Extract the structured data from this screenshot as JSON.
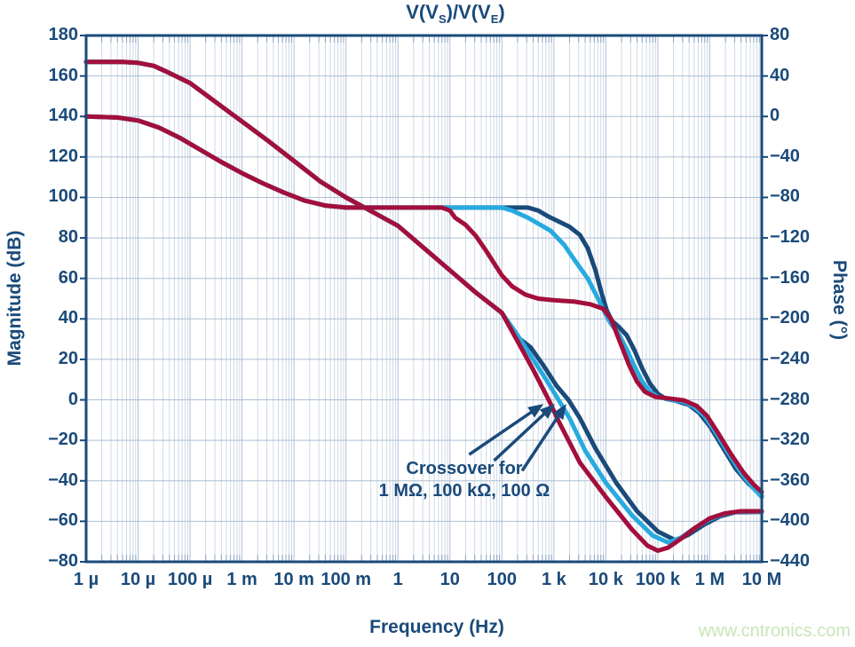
{
  "title": {
    "parts": [
      "V(V",
      "S",
      ")/V(V",
      "E",
      ")"
    ]
  },
  "axes": {
    "magnitude_label": "Magnitude (dB)",
    "phase_label": "Phase (°)",
    "frequency_label": "Frequency (Hz)",
    "x_tick_labels": [
      "1 µ",
      "10 µ",
      "100 µ",
      "1 m",
      "10 m",
      "100 m",
      "1",
      "10",
      "100",
      "1 k",
      "10 k",
      "100 k",
      "1 M",
      "10 M"
    ],
    "left_tick_labels": [
      "180",
      "160",
      "140",
      "120",
      "100",
      "80",
      "60",
      "40",
      "20",
      "0",
      "−20",
      "−40",
      "−60",
      "−80"
    ],
    "right_tick_labels": [
      "80",
      "40",
      "0",
      "−40",
      "−80",
      "−120",
      "−160",
      "−200",
      "−240",
      "−280",
      "−320",
      "−360",
      "−400",
      "−440"
    ]
  },
  "annotation": {
    "line1": "Crossover for",
    "line2": "1 MΩ, 100 kΩ, 100 Ω"
  },
  "watermark": {
    "text": "www.cntronics.com"
  },
  "colors": {
    "navy": "#1a4a7a",
    "cyan": "#27aadf",
    "crimson": "#a30f3c",
    "grid_minor": "#cfd9e6",
    "grid_major": "#aebfd4",
    "inner_tick": "#8aa5c3",
    "border": "#1a4a7a",
    "background": "#ffffff",
    "watermark_green": "#c9e5b9"
  },
  "chart_data": {
    "type": "line",
    "title": "V(VS)/V(VE)",
    "xlabel": "Frequency (Hz)",
    "x_scale": "log",
    "x_range_hz": [
      1e-06,
      10000000.0
    ],
    "y_left": {
      "label": "Magnitude (dB)",
      "range": [
        -80,
        180
      ],
      "tick_step": 20
    },
    "y_right": {
      "label": "Phase (°)",
      "range": [
        -440,
        80
      ],
      "tick_step": 40
    },
    "grid": true,
    "legend": false,
    "series": [
      {
        "id": "magnitude-100ohm",
        "name": "Magnitude 100 Ω",
        "axis": "left",
        "color": "#1a4a7a",
        "points": [
          [
            -6,
            167
          ],
          [
            -5.3,
            167
          ],
          [
            -5,
            166.5
          ],
          [
            -4.7,
            165
          ],
          [
            -4.4,
            161.5
          ],
          [
            -4,
            156.5
          ],
          [
            -3.5,
            147
          ],
          [
            -3,
            137.5
          ],
          [
            -2.5,
            128
          ],
          [
            -2,
            118
          ],
          [
            -1.5,
            108
          ],
          [
            -1,
            100
          ],
          [
            -0.5,
            93
          ],
          [
            0,
            86
          ],
          [
            0.5,
            75
          ],
          [
            1,
            64
          ],
          [
            1.5,
            53
          ],
          [
            2,
            43
          ],
          [
            2.3,
            31
          ],
          [
            2.55,
            26
          ],
          [
            2.8,
            17
          ],
          [
            3.05,
            7
          ],
          [
            3.28,
            0
          ],
          [
            3.5,
            -9
          ],
          [
            3.8,
            -24
          ],
          [
            4.2,
            -41
          ],
          [
            4.6,
            -55
          ],
          [
            5,
            -65
          ],
          [
            5.35,
            -69.5
          ],
          [
            5.6,
            -66.5
          ],
          [
            5.9,
            -61.5
          ],
          [
            6.2,
            -57.5
          ],
          [
            6.5,
            -55.5
          ],
          [
            7,
            -55.3
          ]
        ]
      },
      {
        "id": "magnitude-100k",
        "name": "Magnitude 100 kΩ",
        "axis": "left",
        "color": "#27aadf",
        "points": [
          [
            -6,
            167
          ],
          [
            -5.3,
            167
          ],
          [
            -5,
            166.5
          ],
          [
            -4.7,
            165
          ],
          [
            -4.4,
            161.5
          ],
          [
            -4,
            156.5
          ],
          [
            -3.5,
            147
          ],
          [
            -3,
            137.5
          ],
          [
            -2.5,
            128
          ],
          [
            -2,
            118
          ],
          [
            -1.5,
            108
          ],
          [
            -1,
            100
          ],
          [
            -0.5,
            93
          ],
          [
            0,
            86
          ],
          [
            0.5,
            75
          ],
          [
            1,
            64
          ],
          [
            1.5,
            53
          ],
          [
            2,
            43
          ],
          [
            2.3,
            32
          ],
          [
            2.6,
            20
          ],
          [
            2.85,
            10
          ],
          [
            3.09,
            0
          ],
          [
            3.3,
            -9
          ],
          [
            3.6,
            -25
          ],
          [
            4,
            -41
          ],
          [
            4.5,
            -57
          ],
          [
            4.9,
            -67
          ],
          [
            5.2,
            -70.5
          ],
          [
            5.45,
            -68
          ],
          [
            5.7,
            -63.5
          ],
          [
            6,
            -59
          ],
          [
            6.3,
            -56.2
          ],
          [
            6.6,
            -55.2
          ],
          [
            7,
            -55.2
          ]
        ]
      },
      {
        "id": "magnitude-1M",
        "name": "Magnitude 1 MΩ",
        "axis": "left",
        "color": "#a30f3c",
        "points": [
          [
            -6,
            167
          ],
          [
            -5.3,
            167
          ],
          [
            -5,
            166.5
          ],
          [
            -4.7,
            165
          ],
          [
            -4.4,
            161.5
          ],
          [
            -4,
            156.5
          ],
          [
            -3.5,
            147
          ],
          [
            -3,
            137.5
          ],
          [
            -2.5,
            128
          ],
          [
            -2,
            118
          ],
          [
            -1.5,
            108
          ],
          [
            -1,
            100
          ],
          [
            -0.5,
            93
          ],
          [
            0,
            86
          ],
          [
            0.5,
            75
          ],
          [
            1,
            64
          ],
          [
            1.5,
            53
          ],
          [
            2,
            43
          ],
          [
            2.3,
            29
          ],
          [
            2.6,
            15
          ],
          [
            2.9,
            0
          ],
          [
            3.1,
            -11
          ],
          [
            3.5,
            -31
          ],
          [
            4,
            -48
          ],
          [
            4.5,
            -64
          ],
          [
            4.8,
            -72
          ],
          [
            5,
            -74.5
          ],
          [
            5.2,
            -73
          ],
          [
            5.45,
            -68.5
          ],
          [
            5.7,
            -63.5
          ],
          [
            6,
            -58.5
          ],
          [
            6.3,
            -56
          ],
          [
            6.6,
            -55
          ],
          [
            7,
            -55
          ]
        ]
      },
      {
        "id": "phase-100ohm",
        "name": "Phase 100 Ω",
        "axis": "right",
        "color": "#1a4a7a",
        "points": [
          [
            -6,
            0
          ],
          [
            -5.4,
            -1
          ],
          [
            -5,
            -4
          ],
          [
            -4.6,
            -11
          ],
          [
            -4.2,
            -21
          ],
          [
            -3.8,
            -33
          ],
          [
            -3.4,
            -45
          ],
          [
            -3,
            -56
          ],
          [
            -2.6,
            -66
          ],
          [
            -2.2,
            -75
          ],
          [
            -1.8,
            -83
          ],
          [
            -1.4,
            -88
          ],
          [
            -1,
            -90
          ],
          [
            0,
            -90
          ],
          [
            1,
            -90
          ],
          [
            2,
            -90
          ],
          [
            2.5,
            -90
          ],
          [
            2.7,
            -93
          ],
          [
            2.9,
            -99
          ],
          [
            3.1,
            -104
          ],
          [
            3.3,
            -109
          ],
          [
            3.5,
            -117
          ],
          [
            3.65,
            -130
          ],
          [
            3.8,
            -152
          ],
          [
            3.92,
            -175
          ],
          [
            4.02,
            -192
          ],
          [
            4.12,
            -202
          ],
          [
            4.25,
            -208
          ],
          [
            4.4,
            -216
          ],
          [
            4.55,
            -231
          ],
          [
            4.7,
            -249
          ],
          [
            4.85,
            -264
          ],
          [
            5,
            -274
          ],
          [
            5.15,
            -279
          ],
          [
            5.35,
            -281
          ],
          [
            5.6,
            -285
          ],
          [
            5.8,
            -293
          ],
          [
            6,
            -306
          ],
          [
            6.25,
            -327
          ],
          [
            6.5,
            -348
          ],
          [
            6.75,
            -363
          ],
          [
            6.9,
            -370
          ],
          [
            7,
            -375
          ]
        ]
      },
      {
        "id": "phase-100k",
        "name": "Phase 100 kΩ",
        "axis": "right",
        "color": "#27aadf",
        "points": [
          [
            -6,
            0
          ],
          [
            -5.4,
            -1
          ],
          [
            -5,
            -4
          ],
          [
            -4.6,
            -11
          ],
          [
            -4.2,
            -21
          ],
          [
            -3.8,
            -33
          ],
          [
            -3.4,
            -45
          ],
          [
            -3,
            -56
          ],
          [
            -2.6,
            -66
          ],
          [
            -2.2,
            -75
          ],
          [
            -1.8,
            -83
          ],
          [
            -1.4,
            -88
          ],
          [
            -1,
            -90
          ],
          [
            0,
            -90
          ],
          [
            1,
            -90
          ],
          [
            2,
            -90
          ],
          [
            2.2,
            -93
          ],
          [
            2.5,
            -100
          ],
          [
            2.94,
            -113
          ],
          [
            3.2,
            -127
          ],
          [
            3.4,
            -142
          ],
          [
            3.65,
            -160
          ],
          [
            3.85,
            -180
          ],
          [
            4,
            -196
          ],
          [
            4.1,
            -205
          ],
          [
            4.25,
            -215
          ],
          [
            4.4,
            -230
          ],
          [
            4.55,
            -247
          ],
          [
            4.7,
            -262
          ],
          [
            4.85,
            -272
          ],
          [
            5,
            -277
          ],
          [
            5.25,
            -280
          ],
          [
            5.5,
            -282
          ],
          [
            5.7,
            -287
          ],
          [
            5.9,
            -296
          ],
          [
            6.1,
            -311
          ],
          [
            6.35,
            -332
          ],
          [
            6.6,
            -352
          ],
          [
            6.8,
            -365
          ],
          [
            7,
            -376
          ]
        ]
      },
      {
        "id": "phase-1M",
        "name": "Phase 1 MΩ",
        "axis": "right",
        "color": "#a30f3c",
        "points": [
          [
            -6,
            0
          ],
          [
            -5.4,
            -1
          ],
          [
            -5,
            -4
          ],
          [
            -4.6,
            -11
          ],
          [
            -4.2,
            -21
          ],
          [
            -3.8,
            -33
          ],
          [
            -3.4,
            -45
          ],
          [
            -3,
            -56
          ],
          [
            -2.6,
            -66
          ],
          [
            -2.2,
            -75
          ],
          [
            -1.8,
            -83
          ],
          [
            -1.4,
            -88
          ],
          [
            -1,
            -90
          ],
          [
            0,
            -90
          ],
          [
            0.85,
            -90
          ],
          [
            1,
            -93
          ],
          [
            1.1,
            -100
          ],
          [
            1.3,
            -107
          ],
          [
            1.5,
            -118
          ],
          [
            1.7,
            -133
          ],
          [
            1.85,
            -145
          ],
          [
            2,
            -157
          ],
          [
            2.2,
            -168
          ],
          [
            2.45,
            -176
          ],
          [
            2.7,
            -180
          ],
          [
            3,
            -181.5
          ],
          [
            3.4,
            -183
          ],
          [
            3.7,
            -185.5
          ],
          [
            3.95,
            -190
          ],
          [
            4.1,
            -200
          ],
          [
            4.25,
            -220
          ],
          [
            4.45,
            -246
          ],
          [
            4.6,
            -262
          ],
          [
            4.75,
            -272
          ],
          [
            4.95,
            -277
          ],
          [
            5.2,
            -278.5
          ],
          [
            5.5,
            -280.5
          ],
          [
            5.75,
            -286
          ],
          [
            5.95,
            -296
          ],
          [
            6.15,
            -312
          ],
          [
            6.4,
            -333
          ],
          [
            6.65,
            -352
          ],
          [
            6.85,
            -364
          ],
          [
            7,
            -371
          ]
        ]
      }
    ],
    "annotations": [
      {
        "text": "Crossover for\n1 MΩ, 100 kΩ, 100 Ω",
        "arrows": [
          {
            "from": [
              1.37,
              -27
            ],
            "to": [
              2.8,
              -2
            ]
          },
          {
            "from": [
              1.85,
              -30
            ],
            "to": [
              3.02,
              -2
            ]
          },
          {
            "from": [
              2.39,
              -35
            ],
            "to": [
              3.24,
              -2
            ]
          }
        ]
      }
    ]
  }
}
